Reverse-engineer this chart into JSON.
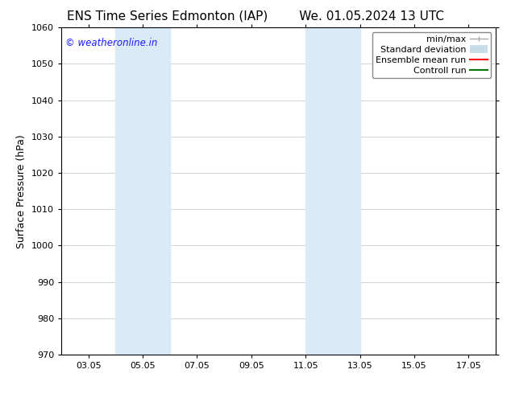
{
  "title_left": "ENS Time Series Edmonton (IAP)",
  "title_right": "We. 01.05.2024 13 UTC",
  "ylabel": "Surface Pressure (hPa)",
  "ylim": [
    970,
    1060
  ],
  "yticks": [
    970,
    980,
    990,
    1000,
    1010,
    1020,
    1030,
    1040,
    1050,
    1060
  ],
  "xtick_positions": [
    3,
    5,
    7,
    9,
    11,
    13,
    15,
    17
  ],
  "xtick_labels": [
    "03.05",
    "05.05",
    "07.05",
    "09.05",
    "11.05",
    "13.05",
    "15.05",
    "17.05"
  ],
  "xlim": [
    2.0,
    18.0
  ],
  "background_color": "#ffffff",
  "plot_bg_color": "#ffffff",
  "watermark": "© weatheronline.in",
  "watermark_color": "#1a1aff",
  "shaded_regions": [
    {
      "xmin": 4.0,
      "xmax": 6.0,
      "color": "#daeaf7"
    },
    {
      "xmin": 11.0,
      "xmax": 13.0,
      "color": "#daeaf7"
    }
  ],
  "legend_labels": [
    "min/max",
    "Standard deviation",
    "Ensemble mean run",
    "Controll run"
  ],
  "legend_colors": [
    "#aaaaaa",
    "#c8dce8",
    "#ff0000",
    "#007700"
  ],
  "grid_color": "#cccccc",
  "border_color": "#000000",
  "title_fontsize": 11,
  "axis_label_fontsize": 9,
  "tick_fontsize": 8,
  "legend_fontsize": 8
}
